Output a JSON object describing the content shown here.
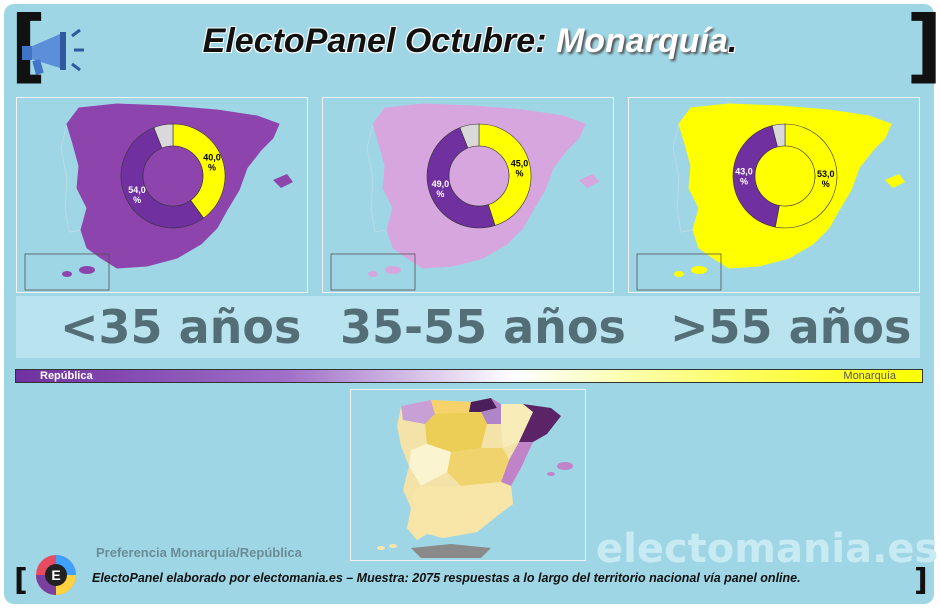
{
  "header": {
    "title_main": "ElectoPanel Octubre:",
    "title_highlight": "Monarquía",
    "title_end": "."
  },
  "colors": {
    "republica": "#7030a0",
    "monarquia": "#ffff00",
    "no_answer": "#d9d9d9",
    "background": "#9ed6e6"
  },
  "chart_data": [
    {
      "type": "pie",
      "group": "<35 años",
      "slices": [
        {
          "label": "República",
          "value": 54.0,
          "display": "54,0\n%"
        },
        {
          "label": "Monarquía",
          "value": 40.0,
          "display": "40,0\n%"
        },
        {
          "label": "",
          "value": 6.0
        }
      ],
      "map_color": "#8e44ad"
    },
    {
      "type": "pie",
      "group": "35-55 años",
      "slices": [
        {
          "label": "República",
          "value": 49.0,
          "display": "49,0\n%"
        },
        {
          "label": "Monarquía",
          "value": 45.0,
          "display": "45,0\n%"
        },
        {
          "label": "",
          "value": 6.0
        }
      ],
      "map_color": "#d7a6de"
    },
    {
      "type": "pie",
      "group": ">55 años",
      "slices": [
        {
          "label": "República",
          "value": 43.0,
          "display": "43,0\n%"
        },
        {
          "label": "Monarquía",
          "value": 53.0,
          "display": "53,0\n%"
        },
        {
          "label": "",
          "value": 4.0
        }
      ],
      "map_color": "#ffff00"
    }
  ],
  "age_labels": [
    "<35 años",
    "35-55 años",
    ">55 años"
  ],
  "scale": {
    "left": "República",
    "right": "Monarquía"
  },
  "watermark": "electomania.es",
  "subtitle": "Preferencia Monarquía/República",
  "footer": "ElectoPanel elaborado por electomania.es – Muestra: 2075 respuestas a lo largo del territorio nacional vía panel online.",
  "logo_letter": "E"
}
